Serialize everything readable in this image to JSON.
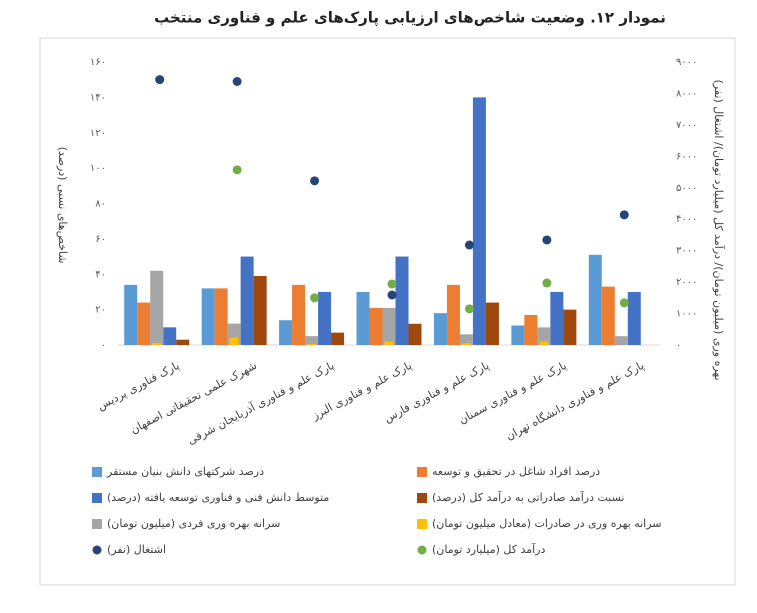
{
  "chart_data": {
    "type": "bar",
    "title": "نمودار ۱۲. وضعیت شاخص‌های ارزیابی پارک‌های علم و فناوری منتخب",
    "y_label": "شاخص‌های نسبی (درصد)",
    "y2_label": "بهره وری (میلیون تومان)/ درآمد کل (میلیارد تومان)/ اشتغال (نفر)",
    "categories": [
      "پارک فناوری پردیس",
      "شهرک علمی تحقیقاتی اصفهان",
      "پارک علم و فناوری آذربایجان شرقی",
      "پارک علم و فناوری البرز",
      "پارک علم و فناوری فارس",
      "پارک علم و فناوری سمنان",
      "پارک علم و فناوری دانشگاه تهران"
    ],
    "ylim": [
      0,
      160
    ],
    "yticks": [
      {
        "value": 0,
        "label": "۰"
      },
      {
        "value": 20,
        "label": "۲۰"
      },
      {
        "value": 40,
        "label": "۴۰"
      },
      {
        "value": 60,
        "label": "۶۰"
      },
      {
        "value": 80,
        "label": "۸۰"
      },
      {
        "value": 100,
        "label": "۱۰۰"
      },
      {
        "value": 120,
        "label": "۱۲۰"
      },
      {
        "value": 140,
        "label": "۱۴۰"
      },
      {
        "value": 160,
        "label": "۱۶۰"
      }
    ],
    "y2lim": [
      0,
      9000
    ],
    "y2ticks": [
      {
        "value": 0,
        "label": "۰"
      },
      {
        "value": 1000,
        "label": "۱۰۰۰"
      },
      {
        "value": 2000,
        "label": "۲۰۰۰"
      },
      {
        "value": 3000,
        "label": "۳۰۰۰"
      },
      {
        "value": 4000,
        "label": "۴۰۰۰"
      },
      {
        "value": 5000,
        "label": "۵۰۰۰"
      },
      {
        "value": 6000,
        "label": "۶۰۰۰"
      },
      {
        "value": 7000,
        "label": "۷۰۰۰"
      },
      {
        "value": 8000,
        "label": "۸۰۰۰"
      },
      {
        "value": 9000,
        "label": "۹۰۰۰"
      }
    ],
    "grid": false,
    "series": [
      {
        "name": "درصد شرکتهای دانش بنیان مستقر",
        "type": "bar",
        "color": "#5b9bd5",
        "values": [
          34,
          32,
          14,
          30,
          18,
          11,
          51
        ]
      },
      {
        "name": "درصد افراد شاغل در تحقیق و توسعه",
        "type": "bar",
        "color": "#ed7d31",
        "values": [
          24,
          32,
          34,
          21,
          34,
          17,
          33
        ]
      },
      {
        "name": "متوسط دانش فنی و فناوری توسعه یافته (درصد)",
        "type": "bar",
        "color": "#4472c4",
        "values": [
          10,
          50,
          30,
          50,
          140,
          30,
          30
        ]
      },
      {
        "name": "نسبت درآمد صادراتی به درآمد کل (درصد)",
        "type": "bar",
        "color": "#9e480e",
        "values": [
          3,
          39,
          7,
          12,
          24,
          20,
          0
        ]
      },
      {
        "name": "سرانه بهره وری فردی (میلیون تومان)",
        "type": "bar",
        "axis": "y2",
        "color": "#a5a5a5",
        "values": [
          2360,
          680,
          280,
          1180,
          340,
          560,
          280
        ]
      },
      {
        "name": "سرانه بهره وری در صادرات  (معادل میلیون تومان)",
        "type": "bar",
        "axis": "y2",
        "color": "#ffc000",
        "values": [
          60,
          230,
          30,
          110,
          60,
          110,
          0
        ]
      },
      {
        "name": "اشتغال (نفر)",
        "type": "scatter",
        "axis": "y2",
        "color": "#264478",
        "values": [
          8440,
          8380,
          5220,
          1590,
          3180,
          3340,
          4140
        ]
      },
      {
        "name": "درآمد کل (میلیارد تومان)",
        "type": "scatter",
        "axis": "y2",
        "color": "#70ad47",
        "values": [
          null,
          5570,
          1500,
          1940,
          1150,
          1970,
          1340
        ]
      }
    ]
  }
}
